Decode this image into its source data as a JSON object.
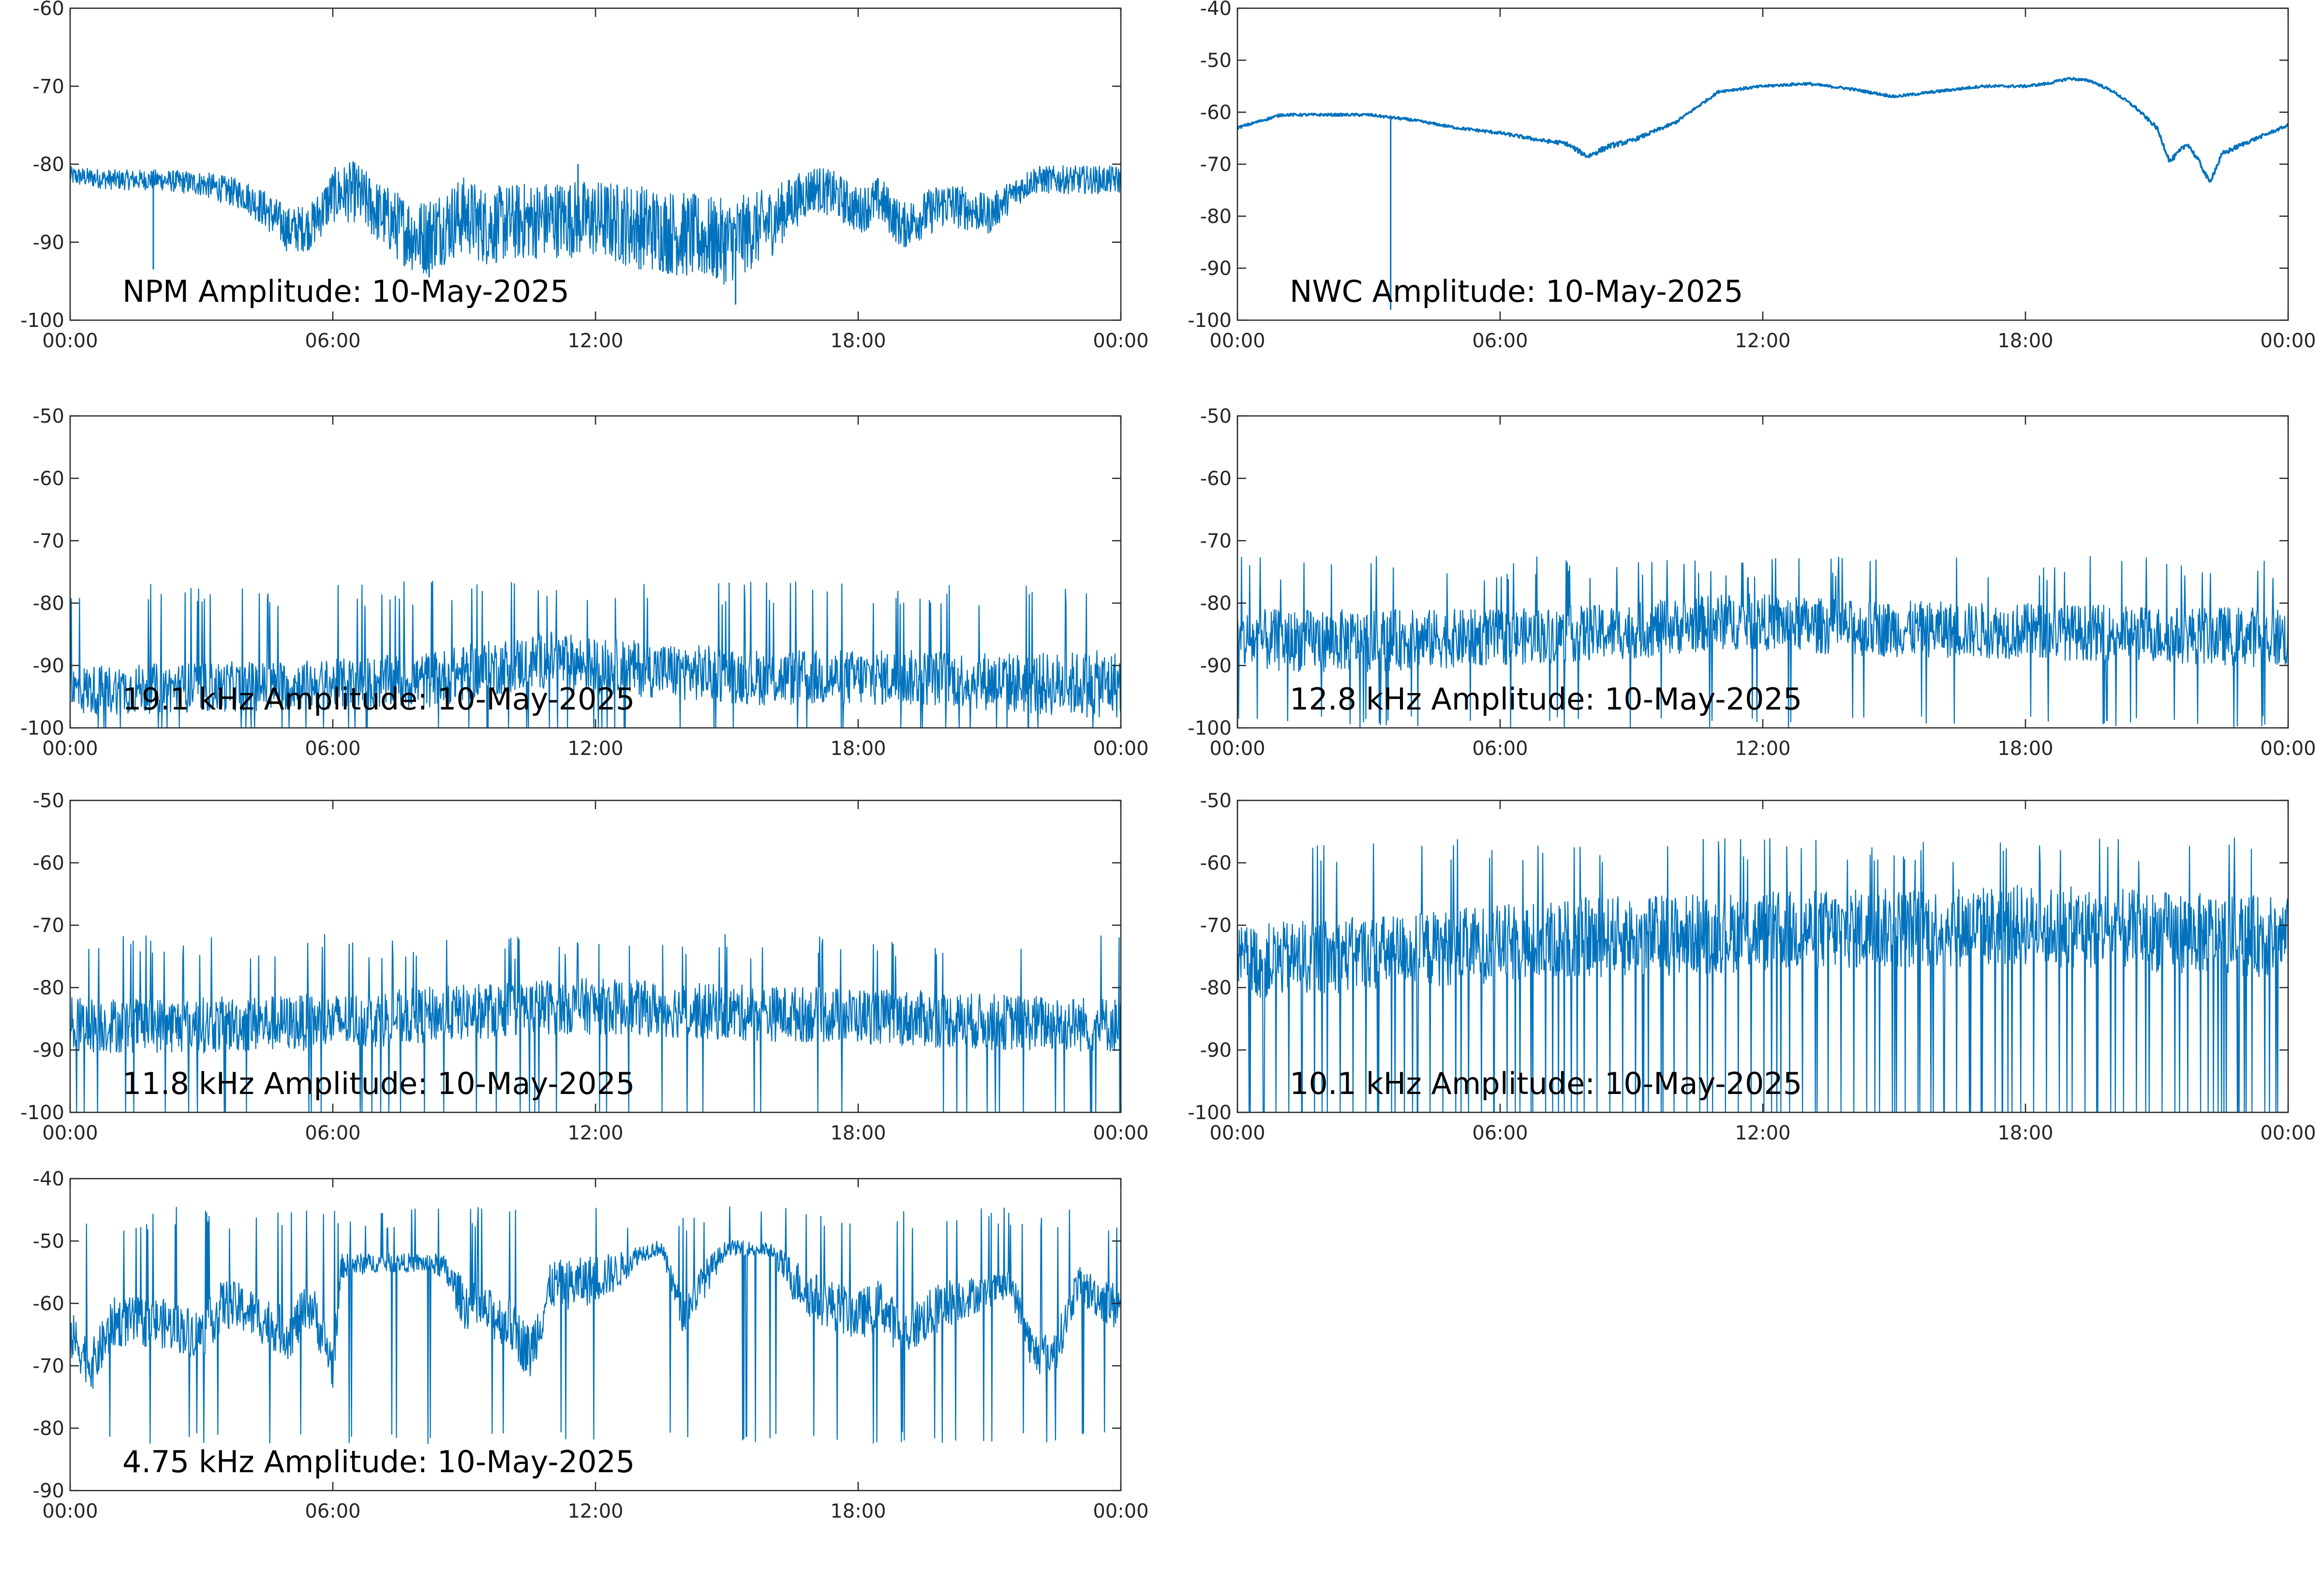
{
  "chart_data": [
    {
      "type": "line",
      "title": "NPM Amplitude: 10-May-2025",
      "ylim": [
        -100,
        -60
      ],
      "yticks": [
        -60,
        -70,
        -80,
        -90,
        -100
      ],
      "xticks": [
        "00:00",
        "06:00",
        "12:00",
        "18:00",
        "00:00"
      ],
      "xlim_hours": [
        0,
        24
      ],
      "grid": false,
      "line_color": "#0072BD",
      "series": [
        {
          "x_hours": [
            0,
            1,
            2,
            3,
            4,
            4.5,
            5,
            5.5,
            6,
            6.5,
            7,
            7.5,
            8,
            8.5,
            9,
            9.5,
            10,
            11,
            12,
            13,
            14,
            15,
            16,
            16.5,
            17,
            17.5,
            18,
            18.5,
            19,
            19.5,
            20,
            21,
            21.5,
            22,
            23,
            24
          ],
          "y_center": [
            -81.5,
            -82,
            -82,
            -82.5,
            -84,
            -86,
            -88.5,
            -88,
            -84,
            -83.5,
            -86,
            -88,
            -89.5,
            -88,
            -86.5,
            -88,
            -87.5,
            -87,
            -87,
            -88,
            -89,
            -90,
            -87.5,
            -85,
            -83,
            -84,
            -86,
            -84.5,
            -88,
            -86.5,
            -85,
            -86.5,
            -84,
            -82,
            -82,
            -82
          ],
          "noise_band": [
            1.2,
            1.3,
            1.3,
            1.6,
            2.0,
            2.5,
            3.0,
            3.0,
            3.5,
            4.0,
            4.0,
            4.5,
            5.0,
            5.0,
            5.0,
            5.0,
            5.0,
            5.0,
            5.0,
            5.5,
            5.5,
            5.5,
            4.5,
            3.5,
            3.0,
            3.0,
            3.0,
            3.0,
            3.0,
            3.0,
            3.0,
            2.5,
            2.0,
            1.8,
            1.8,
            1.8
          ],
          "spikes": [
            {
              "x_hours": 1.9,
              "y": -93.5
            },
            {
              "x_hours": 8.2,
              "y": -94.5
            },
            {
              "x_hours": 11.6,
              "y": -80
            },
            {
              "x_hours": 15.2,
              "y": -98
            }
          ]
        }
      ]
    },
    {
      "type": "line",
      "title": "NWC Amplitude: 10-May-2025",
      "ylim": [
        -100,
        -40
      ],
      "yticks": [
        -40,
        -50,
        -60,
        -70,
        -80,
        -90,
        -100
      ],
      "xticks": [
        "00:00",
        "06:00",
        "12:00",
        "18:00",
        "00:00"
      ],
      "xlim_hours": [
        0,
        24
      ],
      "grid": false,
      "line_color": "#0072BD",
      "series": [
        {
          "x_hours": [
            0,
            1,
            2,
            3,
            4,
            5,
            6,
            7,
            7.5,
            8,
            8.5,
            9,
            10,
            11,
            12,
            13,
            14,
            15,
            16,
            17,
            18,
            18.5,
            19,
            19.5,
            20,
            20.5,
            21,
            21.3,
            21.7,
            22,
            22.2,
            22.5,
            23,
            24
          ],
          "y_center": [
            -63,
            -60.5,
            -60.5,
            -60.5,
            -61.5,
            -63,
            -64,
            -65.5,
            -66,
            -68.5,
            -66.5,
            -65.5,
            -62,
            -56,
            -55,
            -54.5,
            -55.5,
            -57,
            -56,
            -55,
            -55,
            -54.5,
            -53.5,
            -54,
            -56,
            -59,
            -63,
            -69.5,
            -66,
            -70,
            -73.5,
            -68,
            -66,
            -62.5
          ],
          "noise_band": [
            0.5,
            0.5,
            0.5,
            0.5,
            0.5,
            0.5,
            0.6,
            0.7,
            0.8,
            1.0,
            1.0,
            0.8,
            0.6,
            0.5,
            0.5,
            0.5,
            0.5,
            0.5,
            0.5,
            0.5,
            0.5,
            0.5,
            0.5,
            0.5,
            0.5,
            0.6,
            0.8,
            1.0,
            1.0,
            1.0,
            1.0,
            1.0,
            0.8,
            0.5
          ],
          "spikes": [
            {
              "x_hours": 3.5,
              "y": -98
            }
          ]
        }
      ]
    },
    {
      "type": "line",
      "title": "19.1 kHz Amplitude: 10-May-2025",
      "ylim": [
        -100,
        -50
      ],
      "yticks": [
        -50,
        -60,
        -70,
        -80,
        -90,
        -100
      ],
      "xticks": [
        "00:00",
        "06:00",
        "12:00",
        "18:00",
        "00:00"
      ],
      "xlim_hours": [
        0,
        24
      ],
      "grid": false,
      "line_color": "#0072BD",
      "series": [
        {
          "x_hours": [
            0,
            3,
            6,
            8,
            10,
            11,
            12,
            14,
            16,
            18,
            20,
            22,
            24
          ],
          "y_center": [
            -94,
            -93.5,
            -93,
            -92.5,
            -90,
            -89,
            -90,
            -91,
            -92,
            -92,
            -92,
            -93,
            -93
          ],
          "noise_band": [
            4,
            4,
            4,
            4.5,
            4.5,
            4.5,
            4.5,
            4.5,
            4.5,
            4.5,
            4.5,
            5,
            5.5
          ],
          "spike_up": -80.5,
          "spike_down": -100
        }
      ]
    },
    {
      "type": "line",
      "title": "12.8 kHz Amplitude: 10-May-2025",
      "ylim": [
        -100,
        -50
      ],
      "yticks": [
        -50,
        -60,
        -70,
        -80,
        -90,
        -100
      ],
      "xticks": [
        "00:00",
        "06:00",
        "12:00",
        "18:00",
        "00:00"
      ],
      "xlim_hours": [
        0,
        24
      ],
      "grid": false,
      "line_color": "#0072BD",
      "series": [
        {
          "x_hours": [
            0,
            3,
            6,
            9,
            11,
            12,
            14,
            18,
            21,
            24
          ],
          "y_center": [
            -86,
            -86,
            -85.5,
            -84.5,
            -83,
            -83,
            -84,
            -84.5,
            -85,
            -85.5
          ],
          "noise_band": [
            5,
            5,
            4.5,
            4.5,
            4.5,
            4.5,
            4.5,
            4.5,
            4.5,
            5
          ],
          "spike_up": -76.5,
          "spike_down": -98
        }
      ]
    },
    {
      "type": "line",
      "title": "11.8 kHz Amplitude: 10-May-2025",
      "ylim": [
        -100,
        -50
      ],
      "yticks": [
        -50,
        -60,
        -70,
        -80,
        -90,
        -100
      ],
      "xticks": [
        "00:00",
        "06:00",
        "12:00",
        "18:00",
        "00:00"
      ],
      "xlim_hours": [
        0,
        24
      ],
      "grid": false,
      "line_color": "#0072BD",
      "series": [
        {
          "x_hours": [
            0,
            3,
            6,
            9,
            11,
            12,
            15,
            18,
            21,
            24
          ],
          "y_center": [
            -86,
            -86,
            -85.5,
            -84,
            -83,
            -83,
            -84,
            -84.5,
            -85.5,
            -86
          ],
          "noise_band": [
            4.5,
            4.5,
            4.5,
            4.5,
            4.5,
            4.5,
            4.5,
            4.5,
            4.5,
            4.5
          ],
          "spike_up": -75.5,
          "spike_down": -100
        }
      ]
    },
    {
      "type": "line",
      "title": "10.1 kHz Amplitude: 10-May-2025",
      "ylim": [
        -100,
        -50
      ],
      "yticks": [
        -50,
        -60,
        -70,
        -80,
        -90,
        -100
      ],
      "xticks": [
        "00:00",
        "06:00",
        "12:00",
        "18:00",
        "00:00"
      ],
      "xlim_hours": [
        0,
        24
      ],
      "grid": false,
      "line_color": "#0072BD",
      "series": [
        {
          "x_hours": [
            0,
            4,
            8,
            12,
            18,
            24
          ],
          "y_center": [
            -76,
            -74,
            -72,
            -71,
            -70,
            -72
          ],
          "noise_band": [
            6,
            6,
            6.5,
            6.5,
            6.5,
            6.5
          ],
          "spike_up": -60,
          "spike_down": -100,
          "dropout_to": -100
        }
      ]
    },
    {
      "type": "line",
      "title": "4.75 kHz Amplitude: 10-May-2025",
      "ylim": [
        -90,
        -40
      ],
      "yticks": [
        -40,
        -50,
        -60,
        -70,
        -80,
        -90
      ],
      "xticks": [
        "00:00",
        "06:00",
        "12:00",
        "18:00",
        "00:00"
      ],
      "xlim_hours": [
        0,
        24
      ],
      "grid": false,
      "line_color": "#0072BD",
      "series": [
        {
          "x_hours": [
            0,
            0.5,
            1,
            2,
            3,
            3.5,
            4,
            5,
            5.5,
            6,
            6.2,
            7,
            8,
            8.5,
            9,
            10,
            10.5,
            11,
            11.5,
            12,
            12.5,
            13,
            13.5,
            14,
            14.5,
            15,
            16,
            16.5,
            17,
            18,
            18.5,
            19,
            20,
            21,
            21.5,
            22,
            22.5,
            23,
            23.5,
            24
          ],
          "y_center": [
            -65,
            -70,
            -63,
            -63,
            -65,
            -60,
            -61,
            -65,
            -60,
            -70,
            -54,
            -53.5,
            -53.5,
            -54,
            -60,
            -63,
            -68,
            -57,
            -57,
            -56,
            -55,
            -52,
            -51,
            -62,
            -56,
            -51,
            -51.5,
            -56,
            -59,
            -62,
            -60,
            -65,
            -60,
            -58,
            -57,
            -68,
            -68,
            -57,
            -59,
            -61
          ],
          "noise_band": [
            4,
            4,
            4,
            4,
            4,
            4,
            4,
            4,
            4,
            4,
            2,
            1.5,
            1.5,
            2,
            4,
            4,
            4.5,
            4,
            4,
            4,
            3,
            1.5,
            1.2,
            3,
            3,
            1.2,
            1.2,
            3.5,
            4,
            4,
            4,
            4,
            4,
            2.5,
            2.5,
            3.5,
            3.5,
            3,
            3.5,
            4
          ],
          "spike_up": -48.5,
          "spike_down": -80.5
        }
      ]
    }
  ]
}
